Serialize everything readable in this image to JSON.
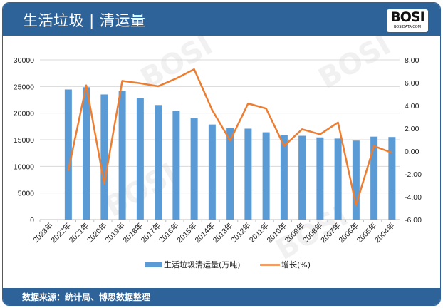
{
  "header": {
    "title": "生活垃圾 | 清运量",
    "logo_text": "BOSI",
    "logo_sub": "BOSIDATA.COM"
  },
  "footer": {
    "source": "数据来源：统计局、博思数据整理"
  },
  "colors": {
    "bar": "#5b9bd5",
    "line": "#ed7d31",
    "band": "#2e6399"
  },
  "chart_data": {
    "type": "bar+line",
    "categories": [
      "2023年",
      "2022年",
      "2021年",
      "2020年",
      "2019年",
      "2018年",
      "2017年",
      "2016年",
      "2015年",
      "2014年",
      "2013年",
      "2012年",
      "2011年",
      "2010年",
      "2009年",
      "2008年",
      "2007年",
      "2006年",
      "2005年",
      "2004年"
    ],
    "series": [
      {
        "name": "生活垃圾清运量(万吨)",
        "type": "bar",
        "axis": "left",
        "values": [
          null,
          24444.7,
          24869.2,
          23511.7,
          24206.2,
          22801.8,
          21520.9,
          20362.0,
          19141.9,
          17860.2,
          17238.6,
          17080.9,
          16395.3,
          15804.8,
          15733.7,
          15437.7,
          15214.5,
          14841.3,
          15576.8,
          15509.3
        ]
      },
      {
        "name": "增长(%)",
        "type": "line",
        "axis": "right",
        "values": [
          null,
          -1.71,
          5.77,
          -2.87,
          6.16,
          5.95,
          5.69,
          6.37,
          7.18,
          3.61,
          0.92,
          4.18,
          3.74,
          0.45,
          1.92,
          1.47,
          2.51,
          -4.72,
          0.44,
          -0.14
        ]
      }
    ],
    "left_axis": {
      "min": 0,
      "max": 30000,
      "ticks": [
        "0",
        "5000",
        "10000",
        "15000",
        "20000",
        "25000",
        "30000"
      ]
    },
    "right_axis": {
      "min": -6,
      "max": 8,
      "ticks": [
        "-6.00",
        "-4.00",
        "-2.00",
        "0.00",
        "2.00",
        "4.00",
        "6.00",
        "8.00"
      ]
    },
    "grid": true,
    "legend": "bottom"
  }
}
